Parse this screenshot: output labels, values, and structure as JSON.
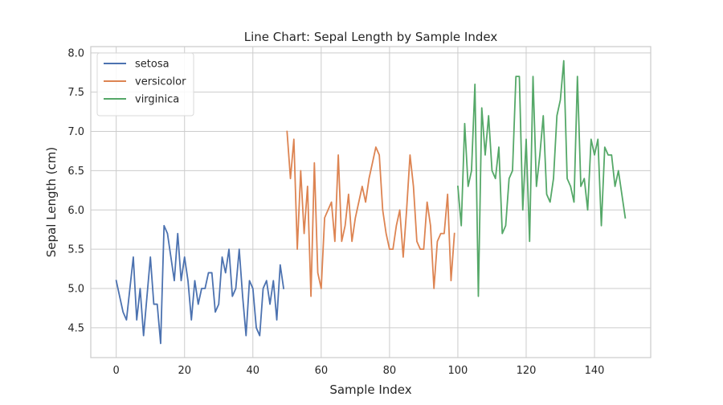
{
  "chart_data": {
    "type": "line",
    "title": "Line Chart: Sepal Length by Sample Index",
    "xlabel": "Sample Index",
    "ylabel": "Sepal Length (cm)",
    "xlim": [
      -7.45,
      156.45
    ],
    "ylim": [
      4.12,
      8.08
    ],
    "x_ticks": [
      0,
      20,
      40,
      60,
      80,
      100,
      120,
      140
    ],
    "y_ticks": [
      4.5,
      5.0,
      5.5,
      6.0,
      6.5,
      7.0,
      7.5,
      8.0
    ],
    "y_tick_labels": [
      "4.5",
      "5.0",
      "5.5",
      "6.0",
      "6.5",
      "7.0",
      "7.5",
      "8.0"
    ],
    "grid": true,
    "legend_position": "top-left",
    "series": [
      {
        "name": "setosa",
        "color": "#4c72b0",
        "x_start": 0,
        "values": [
          5.1,
          4.9,
          4.7,
          4.6,
          5.0,
          5.4,
          4.6,
          5.0,
          4.4,
          4.9,
          5.4,
          4.8,
          4.8,
          4.3,
          5.8,
          5.7,
          5.4,
          5.1,
          5.7,
          5.1,
          5.4,
          5.1,
          4.6,
          5.1,
          4.8,
          5.0,
          5.0,
          5.2,
          5.2,
          4.7,
          4.8,
          5.4,
          5.2,
          5.5,
          4.9,
          5.0,
          5.5,
          4.9,
          4.4,
          5.1,
          5.0,
          4.5,
          4.4,
          5.0,
          5.1,
          4.8,
          5.1,
          4.6,
          5.3,
          5.0
        ]
      },
      {
        "name": "versicolor",
        "color": "#dd8452",
        "x_start": 50,
        "values": [
          7.0,
          6.4,
          6.9,
          5.5,
          6.5,
          5.7,
          6.3,
          4.9,
          6.6,
          5.2,
          5.0,
          5.9,
          6.0,
          6.1,
          5.6,
          6.7,
          5.6,
          5.8,
          6.2,
          5.6,
          5.9,
          6.1,
          6.3,
          6.1,
          6.4,
          6.6,
          6.8,
          6.7,
          6.0,
          5.7,
          5.5,
          5.5,
          5.8,
          6.0,
          5.4,
          6.0,
          6.7,
          6.3,
          5.6,
          5.5,
          5.5,
          6.1,
          5.8,
          5.0,
          5.6,
          5.7,
          5.7,
          6.2,
          5.1,
          5.7
        ]
      },
      {
        "name": "virginica",
        "color": "#55a868",
        "x_start": 100,
        "values": [
          6.3,
          5.8,
          7.1,
          6.3,
          6.5,
          7.6,
          4.9,
          7.3,
          6.7,
          7.2,
          6.5,
          6.4,
          6.8,
          5.7,
          5.8,
          6.4,
          6.5,
          7.7,
          7.7,
          6.0,
          6.9,
          5.6,
          7.7,
          6.3,
          6.7,
          7.2,
          6.2,
          6.1,
          6.4,
          7.2,
          7.4,
          7.9,
          6.4,
          6.3,
          6.1,
          7.7,
          6.3,
          6.4,
          6.0,
          6.9,
          6.7,
          6.9,
          5.8,
          6.8,
          6.7,
          6.7,
          6.3,
          6.5,
          6.2,
          5.9
        ]
      }
    ]
  }
}
